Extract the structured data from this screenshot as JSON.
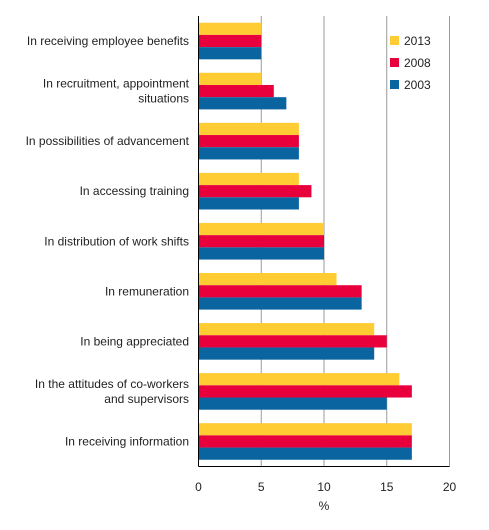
{
  "chart_data": {
    "type": "bar",
    "orientation": "horizontal",
    "categories": [
      [
        "In receiving employee benefits"
      ],
      [
        "In recruitment, appointment",
        "situations"
      ],
      [
        "In possibilities of advancement"
      ],
      [
        "In accessing training"
      ],
      [
        "In distribution of work shifts"
      ],
      [
        "In remuneration"
      ],
      [
        "In being appreciated"
      ],
      [
        "In the attitudes of co-workers",
        "and supervisors"
      ],
      [
        "In receiving information"
      ]
    ],
    "series": [
      {
        "name": "2013",
        "color": "#FFCC33",
        "values": [
          5,
          5,
          8,
          8,
          10,
          11,
          14,
          16,
          17
        ]
      },
      {
        "name": "2008",
        "color": "#E8003D",
        "values": [
          5,
          6,
          8,
          9,
          10,
          13,
          15,
          17,
          17
        ]
      },
      {
        "name": "2003",
        "color": "#0A64A0",
        "values": [
          5,
          7,
          8,
          8,
          10,
          13,
          14,
          15,
          17
        ]
      }
    ],
    "xlabel": "%",
    "xlim": [
      0,
      20
    ],
    "xticks": [
      0,
      5,
      10,
      15,
      20
    ],
    "grid": "vertical",
    "legend": "top-right"
  }
}
